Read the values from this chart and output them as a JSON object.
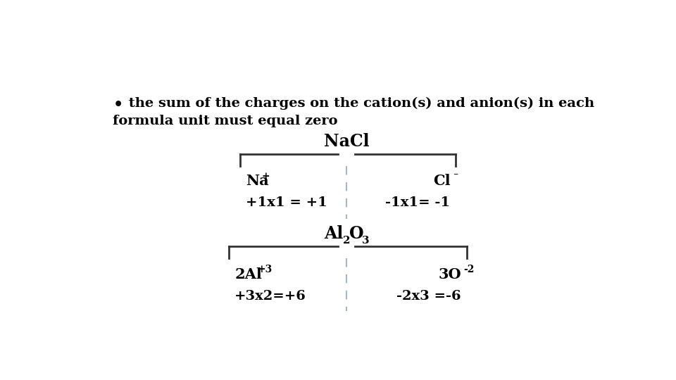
{
  "background_color": "#ffffff",
  "bullet_text_line1": " the sum of the charges on the cation(s) and anion(s) in each",
  "bullet_text_line2": "formula unit must equal zero",
  "bullet_symbol": "•",
  "nacl_label": "NaCl",
  "nacl_left_ion": "Na",
  "nacl_left_sup": "+",
  "nacl_left_eq": "+1x1 = +1",
  "nacl_right_ion": "Cl",
  "nacl_right_sup": "⁻",
  "nacl_right_eq": "-1x1= -1",
  "al2o3_left_ion": "2Al",
  "al2o3_left_sup": "+3",
  "al2o3_left_eq": "+3x2=+6",
  "al2o3_right_ion": "3O",
  "al2o3_right_sup": "-2",
  "al2o3_right_eq": "-2x3 =-6",
  "font_size_text": 14,
  "font_size_label": 15,
  "font_size_ion": 15,
  "font_size_eq": 14,
  "font_size_sup": 10,
  "dashed_color": "#a0b8cc",
  "line_color": "#333333"
}
